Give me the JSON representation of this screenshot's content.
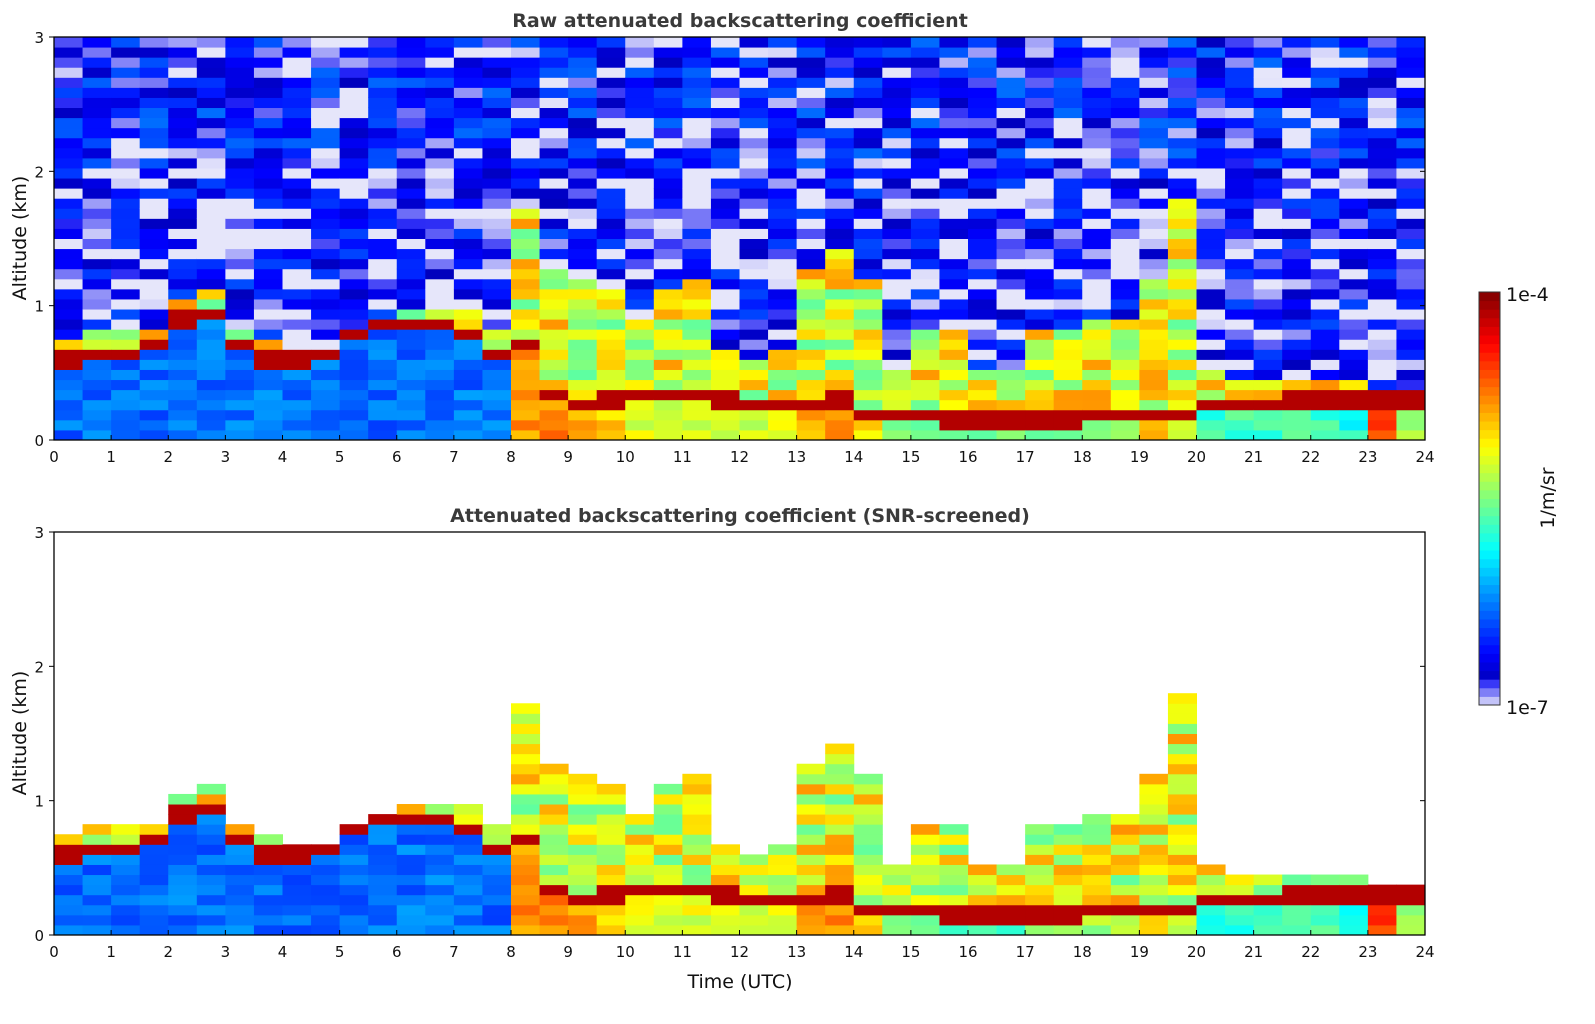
{
  "chart_data": [
    {
      "type": "heatmap",
      "title": "Raw attenuated backscattering coefficient",
      "xlabel": "",
      "ylabel": "Altitude (km)",
      "xlim": [
        0,
        24
      ],
      "ylim": [
        0,
        3
      ],
      "xticks": [
        "0",
        "1",
        "2",
        "3",
        "4",
        "5",
        "6",
        "7",
        "8",
        "9",
        "10",
        "11",
        "12",
        "13",
        "14",
        "15",
        "16",
        "17",
        "18",
        "19",
        "20",
        "21",
        "22",
        "23",
        "24"
      ],
      "yticks": [
        "0",
        "1",
        "2",
        "3"
      ],
      "screened": false
    },
    {
      "type": "heatmap",
      "title": "Attenuated backscattering coefficient (SNR-screened)",
      "xlabel": "Time (UTC)",
      "ylabel": "Altitude (km)",
      "xlim": [
        0,
        24
      ],
      "ylim": [
        0,
        3
      ],
      "xticks": [
        "0",
        "1",
        "2",
        "3",
        "4",
        "5",
        "6",
        "7",
        "8",
        "9",
        "10",
        "11",
        "12",
        "13",
        "14",
        "15",
        "16",
        "17",
        "18",
        "19",
        "20",
        "21",
        "22",
        "23",
        "24"
      ],
      "yticks": [
        "0",
        "1",
        "2",
        "3"
      ],
      "screened": true
    }
  ],
  "profile": {
    "time_h": [
      0,
      0.5,
      1,
      1.5,
      2,
      2.5,
      3,
      3.5,
      4,
      4.5,
      5,
      5.5,
      6,
      6.5,
      7,
      7.5,
      8,
      8.5,
      9,
      9.5,
      10,
      10.5,
      11,
      11.5,
      12,
      12.5,
      13,
      13.5,
      14,
      14.5,
      15,
      15.5,
      16,
      16.5,
      17,
      17.5,
      18,
      18.5,
      19,
      19.5,
      20,
      20.5,
      21,
      21.5,
      22,
      22.5,
      23,
      23.5
    ],
    "layer_top_km": [
      0.75,
      0.8,
      0.8,
      0.85,
      1.05,
      1.1,
      0.85,
      0.75,
      0.65,
      0.7,
      0.85,
      0.9,
      0.95,
      0.95,
      1.0,
      0.8,
      1.7,
      1.3,
      1.2,
      1.1,
      0.9,
      1.1,
      1.2,
      0.7,
      0.6,
      0.7,
      1.3,
      1.4,
      1.2,
      0.5,
      0.8,
      0.8,
      0.5,
      0.5,
      0.8,
      0.8,
      0.9,
      0.9,
      1.2,
      1.8,
      0.5,
      0.45,
      0.45,
      0.45,
      0.45,
      0.45,
      0.4,
      0.4
    ],
    "peak_km": [
      0.6,
      0.65,
      0.65,
      0.7,
      0.9,
      0.95,
      0.7,
      0.6,
      0.6,
      0.65,
      0.8,
      0.85,
      0.85,
      0.85,
      0.8,
      0.65,
      0.7,
      0.35,
      0.25,
      0.3,
      0.35,
      0.35,
      0.35,
      0.3,
      0.25,
      0.25,
      0.25,
      0.3,
      0.2,
      0.2,
      0.2,
      0.15,
      0.15,
      0.15,
      0.15,
      0.15,
      0.2,
      0.2,
      0.2,
      0.2,
      0.25,
      0.25,
      0.25,
      0.28,
      0.3,
      0.3,
      0.3,
      0.3
    ],
    "below_peak_log10": [
      -6.3,
      -6.3,
      -6.3,
      -6.3,
      -6.3,
      -6.3,
      -6.3,
      -6.3,
      -6.3,
      -6.3,
      -6.3,
      -6.3,
      -6.3,
      -6.3,
      -6.3,
      -6.3,
      -4.8,
      -4.8,
      -4.9,
      -5.0,
      -5.2,
      -5.2,
      -5.2,
      -5.2,
      -5.3,
      -5.2,
      -4.9,
      -4.8,
      -5.0,
      -5.6,
      -5.6,
      -5.6,
      -5.6,
      -5.6,
      -5.5,
      -5.5,
      -5.4,
      -5.3,
      -5.0,
      -5.2,
      -5.7,
      -5.7,
      -5.7,
      -5.7,
      -5.7,
      -5.8,
      -4.6,
      -5.4
    ]
  },
  "colorbar": {
    "label": "1/m/sr",
    "max_label": "1e-4",
    "min_label": "1e-7",
    "log10_range": [
      -7,
      -4
    ]
  }
}
